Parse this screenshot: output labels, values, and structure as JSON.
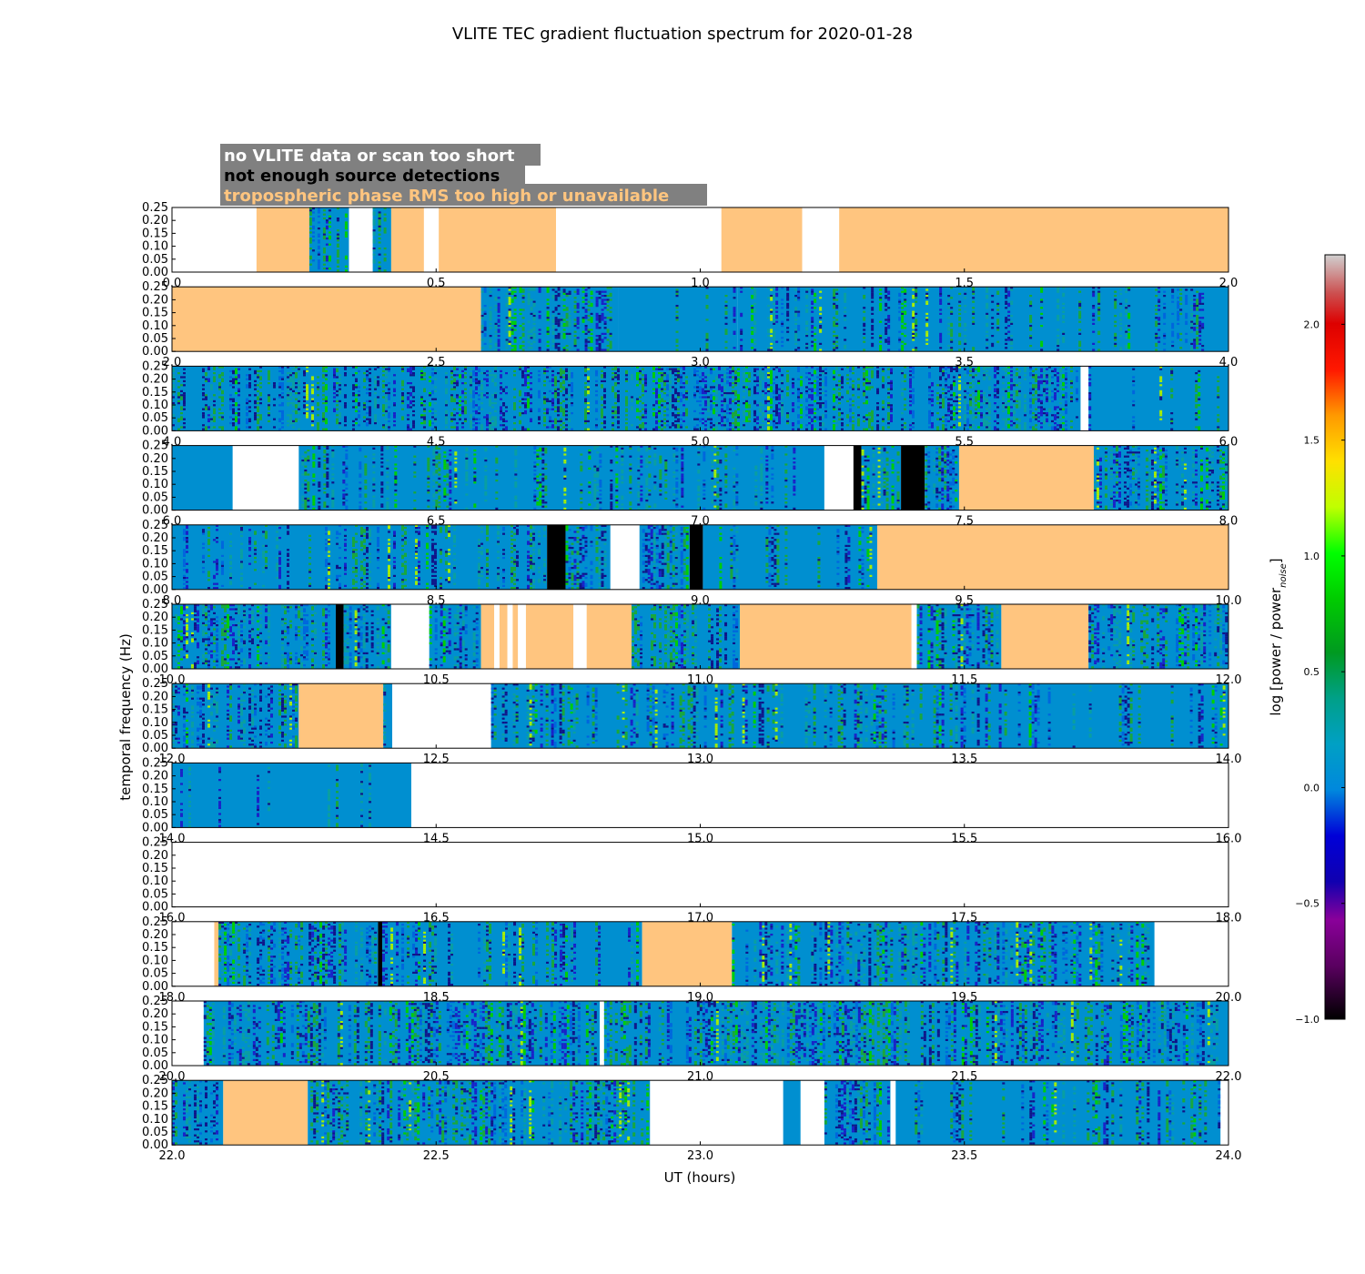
{
  "chart_data": {
    "type": "heatmap",
    "title": "VLITE TEC gradient fluctuation spectrum for 2020-01-28",
    "xlabel": "UT (hours)",
    "ylabel": "temporal frequency (Hz)",
    "yticks": [
      "0.00",
      "0.05",
      "0.10",
      "0.15",
      "0.20",
      "0.25"
    ],
    "ylim": [
      0,
      0.25
    ],
    "legend": [
      {
        "label": "no VLITE data or scan too short",
        "color": "#ffffff"
      },
      {
        "label": "not enough source detections",
        "color": "#000000"
      },
      {
        "label": "tropospheric phase RMS too high or unavailable",
        "color": "#ffc57f"
      }
    ],
    "colorbar": {
      "label": "log [power / power",
      "label_sub": "noise",
      "label_end": "]",
      "range": [
        -1.0,
        2.3
      ],
      "ticks": [
        "2.0",
        "1.5",
        "1.0",
        "0.5",
        "0.0",
        "−0.5",
        "−1.0"
      ],
      "tick_values": [
        2.0,
        1.5,
        1.0,
        0.5,
        0.0,
        -0.5,
        -1.0
      ],
      "colormap": "spectral"
    },
    "panels": [
      {
        "xmin": 0,
        "xmax": 2,
        "xticks": [
          "0.0",
          "0.5",
          "1.0",
          "1.5",
          "2.0"
        ],
        "segments": [
          [
            "white",
            0,
            0.16
          ],
          [
            "trop",
            0.16,
            0.26
          ],
          [
            "data",
            0.26,
            0.335,
            "busy"
          ],
          [
            "white",
            0.335,
            0.38
          ],
          [
            "data",
            0.38,
            0.415,
            "busy"
          ],
          [
            "trop",
            0.415,
            0.477
          ],
          [
            "white",
            0.477,
            0.505
          ],
          [
            "trop",
            0.505,
            0.727
          ],
          [
            "white",
            0.727,
            1.04
          ],
          [
            "trop",
            1.04,
            1.193
          ],
          [
            "white",
            1.193,
            1.263
          ],
          [
            "trop",
            1.263,
            2.0
          ]
        ]
      },
      {
        "xmin": 2,
        "xmax": 4,
        "xticks": [
          "2.0",
          "2.5",
          "3.0",
          "3.5",
          "4.0"
        ],
        "segments": [
          [
            "trop",
            2.0,
            2.585
          ],
          [
            "data",
            2.585,
            2.845,
            "busy"
          ],
          [
            "data",
            2.845,
            3.07,
            "quiet"
          ],
          [
            "data",
            3.07,
            4.0,
            "mixed"
          ]
        ]
      },
      {
        "xmin": 4,
        "xmax": 6,
        "xticks": [
          "4.0",
          "4.5",
          "5.0",
          "5.5",
          "6.0"
        ],
        "segments": [
          [
            "data",
            4.0,
            5.72,
            "busy"
          ],
          [
            "white",
            5.72,
            5.735
          ],
          [
            "data",
            5.735,
            6.0,
            "quiet"
          ]
        ]
      },
      {
        "xmin": 6,
        "xmax": 8,
        "xticks": [
          "6.0",
          "6.5",
          "7.0",
          "7.5",
          "8.0"
        ],
        "segments": [
          [
            "data",
            6.0,
            6.115,
            "quiet"
          ],
          [
            "white",
            6.115,
            6.24
          ],
          [
            "data",
            6.24,
            7.235,
            "mixed"
          ],
          [
            "white",
            7.235,
            7.29
          ],
          [
            "black",
            7.29,
            7.305
          ],
          [
            "data",
            7.305,
            7.38,
            "busy"
          ],
          [
            "black",
            7.38,
            7.425
          ],
          [
            "data",
            7.425,
            7.49,
            "busy"
          ],
          [
            "trop",
            7.49,
            7.745
          ],
          [
            "data",
            7.745,
            8.0,
            "busy"
          ]
        ]
      },
      {
        "xmin": 8,
        "xmax": 10,
        "xticks": [
          "8.0",
          "8.5",
          "9.0",
          "9.5",
          "10.0"
        ],
        "segments": [
          [
            "data",
            8.0,
            8.71,
            "mixed"
          ],
          [
            "black",
            8.71,
            8.745
          ],
          [
            "data",
            8.745,
            8.83,
            "busy"
          ],
          [
            "white",
            8.83,
            8.885
          ],
          [
            "data",
            8.885,
            8.98,
            "busy"
          ],
          [
            "black",
            8.98,
            9.005
          ],
          [
            "data",
            9.005,
            9.335,
            "mixed"
          ],
          [
            "trop",
            9.335,
            10.0
          ]
        ]
      },
      {
        "xmin": 10,
        "xmax": 12,
        "xticks": [
          "10.0",
          "10.5",
          "11.0",
          "11.5",
          "12.0"
        ],
        "segments": [
          [
            "data",
            10.0,
            10.31,
            "busy"
          ],
          [
            "black",
            10.31,
            10.325
          ],
          [
            "data",
            10.325,
            10.415,
            "busy"
          ],
          [
            "white",
            10.415,
            10.487
          ],
          [
            "data",
            10.487,
            10.585,
            "busy"
          ],
          [
            "trop",
            10.585,
            10.61
          ],
          [
            "white",
            10.61,
            10.62
          ],
          [
            "trop",
            10.62,
            10.635
          ],
          [
            "white",
            10.635,
            10.645
          ],
          [
            "trop",
            10.645,
            10.655
          ],
          [
            "white",
            10.655,
            10.67
          ],
          [
            "trop",
            10.67,
            10.76
          ],
          [
            "white",
            10.76,
            10.785
          ],
          [
            "trop",
            10.785,
            10.87
          ],
          [
            "data",
            10.87,
            11.075,
            "busy"
          ],
          [
            "trop",
            11.075,
            11.4
          ],
          [
            "white",
            11.4,
            11.41
          ],
          [
            "data",
            11.41,
            11.57,
            "busy"
          ],
          [
            "trop",
            11.57,
            11.735
          ],
          [
            "data",
            11.735,
            12.0,
            "busy"
          ]
        ]
      },
      {
        "xmin": 12,
        "xmax": 14,
        "xticks": [
          "12.0",
          "12.5",
          "13.0",
          "13.5",
          "14.0"
        ],
        "segments": [
          [
            "data",
            12.0,
            12.24,
            "busy"
          ],
          [
            "trop",
            12.24,
            12.4
          ],
          [
            "data",
            12.4,
            12.417,
            "quiet"
          ],
          [
            "white",
            12.417,
            12.604
          ],
          [
            "data",
            12.604,
            14.0,
            "mixed"
          ]
        ]
      },
      {
        "xmin": 14,
        "xmax": 16,
        "xticks": [
          "14.0",
          "14.5",
          "15.0",
          "15.5",
          "16.0"
        ],
        "segments": [
          [
            "data",
            14.0,
            14.453,
            "quiet"
          ],
          [
            "white",
            14.453,
            16.0
          ]
        ]
      },
      {
        "xmin": 16,
        "xmax": 18,
        "xticks": [
          "16.0",
          "16.5",
          "17.0",
          "17.5",
          "18.0"
        ],
        "segments": [
          [
            "white",
            16.0,
            18.0
          ]
        ]
      },
      {
        "xmin": 18,
        "xmax": 20,
        "xticks": [
          "18.0",
          "18.5",
          "19.0",
          "19.5",
          "20.0"
        ],
        "segments": [
          [
            "white",
            18.0,
            18.08
          ],
          [
            "trop",
            18.08,
            18.088
          ],
          [
            "data",
            18.088,
            18.39,
            "busy"
          ],
          [
            "black",
            18.39,
            18.398
          ],
          [
            "data",
            18.398,
            18.89,
            "mixed"
          ],
          [
            "trop",
            18.89,
            19.06
          ],
          [
            "data",
            19.06,
            19.86,
            "busy"
          ],
          [
            "white",
            19.86,
            20.0
          ]
        ]
      },
      {
        "xmin": 20,
        "xmax": 22,
        "xticks": [
          "20.0",
          "20.5",
          "21.0",
          "21.5",
          "22.0"
        ],
        "segments": [
          [
            "white",
            20.0,
            20.06
          ],
          [
            "data",
            20.06,
            20.81,
            "busy"
          ],
          [
            "white",
            20.81,
            20.818
          ],
          [
            "data",
            20.818,
            22.0,
            "busy"
          ]
        ]
      },
      {
        "xmin": 22,
        "xmax": 24,
        "xticks": [
          "22.0",
          "22.5",
          "23.0",
          "23.5",
          "24.0"
        ],
        "segments": [
          [
            "data",
            22.0,
            22.097,
            "busy"
          ],
          [
            "trop",
            22.097,
            22.257
          ],
          [
            "data",
            22.257,
            22.905,
            "busy"
          ],
          [
            "white",
            22.905,
            23.157
          ],
          [
            "data",
            23.157,
            23.19,
            "quiet"
          ],
          [
            "white",
            23.19,
            23.235
          ],
          [
            "data",
            23.235,
            23.36,
            "busy"
          ],
          [
            "white",
            23.36,
            23.37
          ],
          [
            "data",
            23.37,
            23.985,
            "mixed"
          ],
          [
            "white",
            23.985,
            24.0
          ]
        ]
      }
    ]
  }
}
